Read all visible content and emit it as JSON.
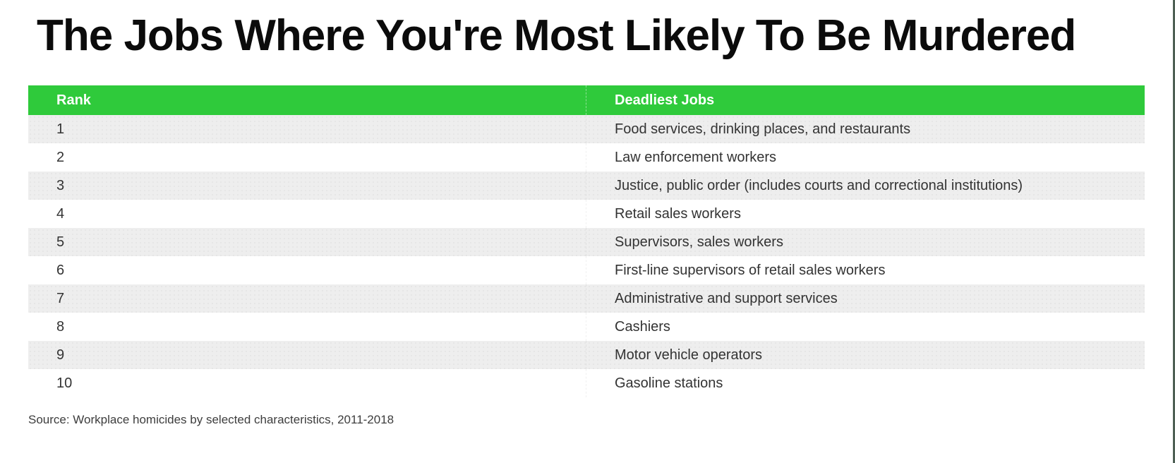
{
  "title": "The Jobs Where You're Most Likely To Be Murdered",
  "table": {
    "columns": [
      "Rank",
      "Deadliest Jobs"
    ],
    "rows": [
      {
        "rank": "1",
        "job": "Food services, drinking places, and restaurants"
      },
      {
        "rank": "2",
        "job": "Law enforcement workers"
      },
      {
        "rank": "3",
        "job": "Justice, public order (includes courts and correctional institutions)"
      },
      {
        "rank": "4",
        "job": "Retail sales workers"
      },
      {
        "rank": "5",
        "job": "Supervisors, sales workers"
      },
      {
        "rank": "6",
        "job": "First-line supervisors of retail sales workers"
      },
      {
        "rank": "7",
        "job": "Administrative and support services"
      },
      {
        "rank": "8",
        "job": "Cashiers"
      },
      {
        "rank": "9",
        "job": "Motor vehicle operators"
      },
      {
        "rank": "10",
        "job": "Gasoline stations"
      }
    ]
  },
  "source": "Source: Workplace homicides by selected characteristics, 2011-2018",
  "colors": {
    "header_bg": "#2fca3b",
    "header_text": "#ffffff",
    "row_alt_bg": "#eeeeee",
    "row_bg": "#ffffff",
    "row_text": "#333333",
    "title_text": "#0b0b0b",
    "edge_line": "#4d5f54"
  },
  "chart_data": {
    "type": "table",
    "title": "The Jobs Where You're Most Likely To Be Murdered",
    "columns": [
      "Rank",
      "Deadliest Jobs"
    ],
    "rows": [
      [
        1,
        "Food services, drinking places, and restaurants"
      ],
      [
        2,
        "Law enforcement workers"
      ],
      [
        3,
        "Justice, public order (includes courts and correctional institutions)"
      ],
      [
        4,
        "Retail sales workers"
      ],
      [
        5,
        "Supervisors, sales workers"
      ],
      [
        6,
        "First-line supervisors of retail sales workers"
      ],
      [
        7,
        "Administrative and support services"
      ],
      [
        8,
        "Cashiers"
      ],
      [
        9,
        "Motor vehicle operators"
      ],
      [
        10,
        "Gasoline stations"
      ]
    ],
    "source": "Source: Workplace homicides by selected characteristics, 2011-2018",
    "layout_hints": {
      "header_bg": "#2fca3b",
      "zebra_striping": true,
      "stripe_color": "#eeeeee",
      "column_split_ratio": 0.5
    }
  }
}
